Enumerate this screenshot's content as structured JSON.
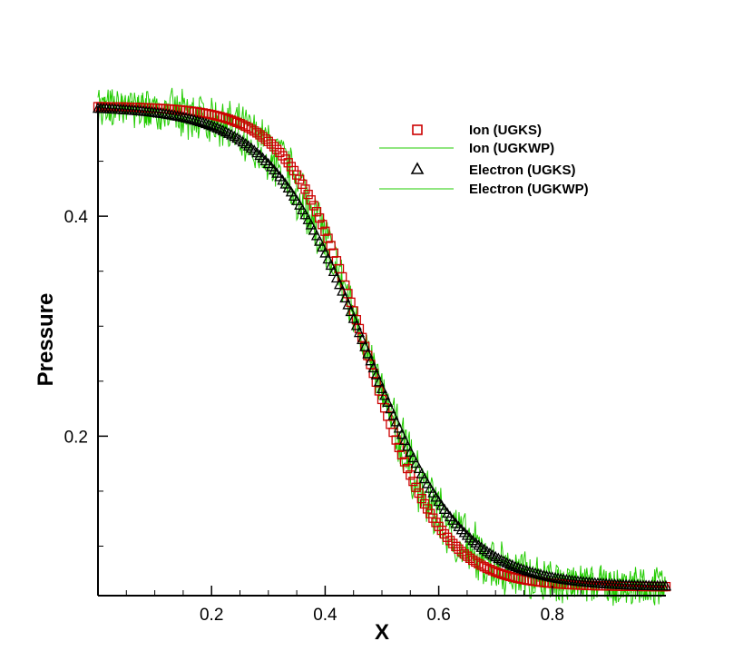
{
  "chart_data": {
    "type": "scatter",
    "xlabel": "X",
    "ylabel": "Pressure",
    "xlim": [
      0.0,
      1.0
    ],
    "ylim": [
      0.055,
      0.5
    ],
    "x_ticks": [
      0.2,
      0.4,
      0.6,
      0.8
    ],
    "y_ticks": [
      0.2,
      0.4
    ],
    "x_tick_labels": [
      "0.2",
      "0.4",
      "0.6",
      "0.8"
    ],
    "y_tick_labels": [
      "0.2",
      "0.4"
    ],
    "grid": false,
    "legend_position": "top-right",
    "series": [
      {
        "name": "Ion (UGKS)",
        "style": "marker",
        "marker": "square",
        "color": "#cc0000",
        "profile": {
          "high": 0.5,
          "low": 0.063,
          "center": 0.47,
          "width": 0.067
        },
        "x": [
          0.0,
          0.05,
          0.1,
          0.15,
          0.2,
          0.25,
          0.3,
          0.33,
          0.36,
          0.39,
          0.42,
          0.45,
          0.48,
          0.51,
          0.54,
          0.57,
          0.6,
          0.63,
          0.66,
          0.69,
          0.72,
          0.75,
          0.8,
          0.85,
          0.9,
          0.95,
          1.0
        ],
        "values": [
          0.5,
          0.5,
          0.5,
          0.5,
          0.499,
          0.496,
          0.486,
          0.473,
          0.452,
          0.418,
          0.372,
          0.318,
          0.26,
          0.206,
          0.162,
          0.128,
          0.104,
          0.088,
          0.078,
          0.072,
          0.068,
          0.066,
          0.064,
          0.063,
          0.063,
          0.063,
          0.063
        ]
      },
      {
        "name": "Ion (UGKWP)",
        "style": "noisy-line",
        "color": "#22cc00",
        "profile": {
          "high": 0.5,
          "low": 0.063,
          "center": 0.47,
          "width": 0.067
        },
        "noise_amplitude": 0.02
      },
      {
        "name": "Electron (UGKS)",
        "style": "marker",
        "marker": "triangle",
        "color": "#000000",
        "profile": {
          "high": 0.5,
          "low": 0.063,
          "center": 0.47,
          "width": 0.085
        },
        "x": [
          0.0,
          0.05,
          0.1,
          0.15,
          0.2,
          0.25,
          0.3,
          0.33,
          0.36,
          0.39,
          0.42,
          0.45,
          0.48,
          0.51,
          0.54,
          0.57,
          0.6,
          0.63,
          0.66,
          0.69,
          0.72,
          0.75,
          0.8,
          0.85,
          0.9,
          0.95,
          1.0
        ],
        "values": [
          0.5,
          0.5,
          0.5,
          0.5,
          0.499,
          0.495,
          0.484,
          0.47,
          0.447,
          0.414,
          0.37,
          0.32,
          0.268,
          0.219,
          0.178,
          0.145,
          0.12,
          0.101,
          0.088,
          0.079,
          0.073,
          0.069,
          0.066,
          0.064,
          0.063,
          0.063,
          0.063
        ]
      },
      {
        "name": "Electron (UGKWP)",
        "style": "noisy-line",
        "color": "#22cc00",
        "profile": {
          "high": 0.5,
          "low": 0.063,
          "center": 0.47,
          "width": 0.085
        },
        "noise_amplitude": 0.02
      }
    ]
  }
}
